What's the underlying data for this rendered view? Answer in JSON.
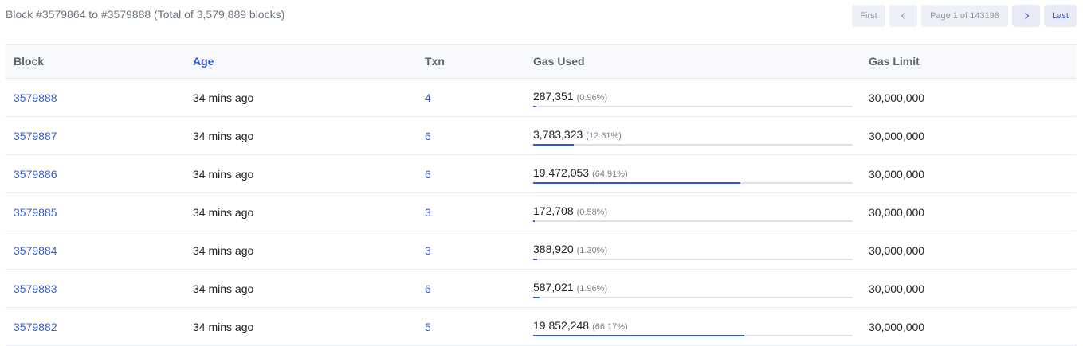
{
  "header": {
    "summary": "Block #3579864 to #3579888 (Total of 3,579,889 blocks)"
  },
  "pager": {
    "first": "First",
    "page": "Page 1 of 143196",
    "last": "Last"
  },
  "columns": [
    "Block",
    "Age",
    "Txn",
    "Gas Used",
    "Gas Limit"
  ],
  "rows": [
    {
      "block": "3579888",
      "age": "34 mins ago",
      "txn": "4",
      "gas_used": "287,351",
      "gas_pct": "(0.96%)",
      "gas_fraction": 0.0096,
      "gas_limit": "30,000,000"
    },
    {
      "block": "3579887",
      "age": "34 mins ago",
      "txn": "6",
      "gas_used": "3,783,323",
      "gas_pct": "(12.61%)",
      "gas_fraction": 0.1261,
      "gas_limit": "30,000,000"
    },
    {
      "block": "3579886",
      "age": "34 mins ago",
      "txn": "6",
      "gas_used": "19,472,053",
      "gas_pct": "(64.91%)",
      "gas_fraction": 0.6491,
      "gas_limit": "30,000,000"
    },
    {
      "block": "3579885",
      "age": "34 mins ago",
      "txn": "3",
      "gas_used": "172,708",
      "gas_pct": "(0.58%)",
      "gas_fraction": 0.0058,
      "gas_limit": "30,000,000"
    },
    {
      "block": "3579884",
      "age": "34 mins ago",
      "txn": "3",
      "gas_used": "388,920",
      "gas_pct": "(1.30%)",
      "gas_fraction": 0.013,
      "gas_limit": "30,000,000"
    },
    {
      "block": "3579883",
      "age": "34 mins ago",
      "txn": "6",
      "gas_used": "587,021",
      "gas_pct": "(1.96%)",
      "gas_fraction": 0.0196,
      "gas_limit": "30,000,000"
    },
    {
      "block": "3579882",
      "age": "34 mins ago",
      "txn": "5",
      "gas_used": "19,852,248",
      "gas_pct": "(66.17%)",
      "gas_fraction": 0.6617,
      "gas_limit": "30,000,000"
    }
  ],
  "icons": {
    "prev": "chevron-left-icon",
    "next": "chevron-right-icon"
  },
  "colors": {
    "link": "#3a5cd6",
    "gas_bar": "#3258d4",
    "header_bg": "#f8f9fc"
  }
}
